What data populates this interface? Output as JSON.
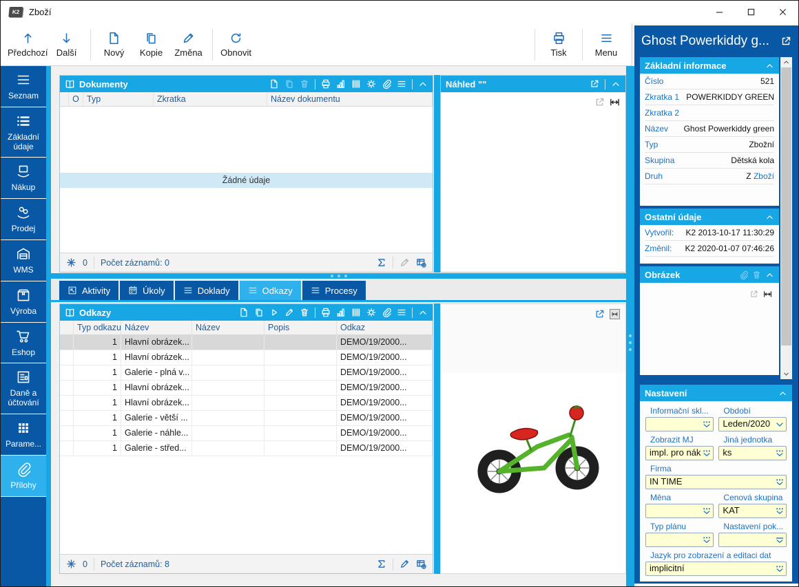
{
  "window": {
    "title": "Zboží",
    "app_logo": "K2",
    "controls": [
      "minimize",
      "maximize",
      "close"
    ]
  },
  "toolbar": {
    "groups": [
      [
        {
          "key": "predchozi",
          "label": "Předchozí",
          "icon": "arrow-up"
        },
        {
          "key": "dalsi",
          "label": "Další",
          "icon": "arrow-down"
        }
      ],
      [
        {
          "key": "novy",
          "label": "Nový",
          "icon": "doc-new"
        },
        {
          "key": "kopie",
          "label": "Kopie",
          "icon": "copy"
        },
        {
          "key": "zmena",
          "label": "Změna",
          "icon": "pencil"
        }
      ],
      [
        {
          "key": "obnovit",
          "label": "Obnovit",
          "icon": "refresh"
        }
      ]
    ],
    "right": [
      {
        "key": "tisk",
        "label": "Tisk",
        "icon": "print"
      },
      {
        "key": "menu",
        "label": "Menu",
        "icon": "menu"
      }
    ]
  },
  "sidebar": {
    "items": [
      {
        "key": "seznam",
        "label": "Seznam",
        "icon": "menu",
        "active": false
      },
      {
        "key": "zakladni-udaje",
        "label": "Základní údaje",
        "icon": "list",
        "active": false
      },
      {
        "key": "nakup",
        "label": "Nákup",
        "icon": "hand-box",
        "active": false
      },
      {
        "key": "prodej",
        "label": "Prodej",
        "icon": "coins-hand",
        "active": false
      },
      {
        "key": "wms",
        "label": "WMS",
        "icon": "warehouse",
        "active": false
      },
      {
        "key": "vyroba",
        "label": "Výroba",
        "icon": "box",
        "active": false
      },
      {
        "key": "eshop",
        "label": "Eshop",
        "icon": "cart",
        "active": false
      },
      {
        "key": "dane",
        "label": "Daně a účtování",
        "icon": "cal-list",
        "active": false
      },
      {
        "key": "parametry",
        "label": "Parame...",
        "icon": "grid",
        "active": false
      },
      {
        "key": "prilohy",
        "label": "Přílohy",
        "icon": "paperclip",
        "active": true
      }
    ]
  },
  "documents_panel": {
    "title": "Dokumenty",
    "actions": [
      {
        "i": "doc-new"
      },
      {
        "i": "copy",
        "d": true
      },
      {
        "i": "trash",
        "d": true
      },
      {
        "sep": true
      },
      {
        "i": "print"
      },
      {
        "i": "chart"
      },
      {
        "i": "columns"
      },
      {
        "i": "gear"
      },
      {
        "i": "paperclip"
      },
      {
        "i": "menu"
      },
      {
        "sep": true
      },
      {
        "i": "chevron-up"
      }
    ],
    "columns": [
      "",
      "O",
      "Typ",
      "Zkratka",
      "Název dokumentu"
    ],
    "empty_text": "Žádné údaje",
    "frozen_count": "0",
    "record_count": "Počet záznamů: 0"
  },
  "preview_panel": {
    "title": "Náhled \"\""
  },
  "tabs": {
    "items": [
      {
        "key": "aktivity",
        "label": "Aktivity",
        "icon": "diag-arrow",
        "active": false
      },
      {
        "key": "ukoly",
        "label": "Úkoly",
        "icon": "calendar",
        "active": false
      },
      {
        "key": "doklady",
        "label": "Doklady",
        "icon": "menu",
        "active": false
      },
      {
        "key": "odkazy",
        "label": "Odkazy",
        "icon": "menu",
        "active": true
      },
      {
        "key": "procesy",
        "label": "Procesy",
        "icon": "menu",
        "active": false
      }
    ]
  },
  "links_panel": {
    "title": "Odkazy",
    "actions": [
      {
        "i": "doc-new"
      },
      {
        "i": "copy"
      },
      {
        "i": "play"
      },
      {
        "i": "pencil"
      },
      {
        "i": "trash"
      },
      {
        "sep": true
      },
      {
        "i": "print"
      },
      {
        "i": "chart"
      },
      {
        "i": "columns"
      },
      {
        "i": "gear"
      },
      {
        "i": "paperclip"
      },
      {
        "i": "menu"
      },
      {
        "sep": true
      },
      {
        "i": "chevron-up"
      }
    ],
    "columns": [
      "",
      "Typ odkazu",
      "Název",
      "Název",
      "Popis",
      "Odkaz"
    ],
    "rows": [
      {
        "typ": "1",
        "nazev": "Hlavní obrázek...",
        "nazev2": "",
        "popis": "",
        "odkaz": "DEMO/19/2000...",
        "selected": true
      },
      {
        "typ": "1",
        "nazev": "Hlavní obrázek...",
        "nazev2": "",
        "popis": "",
        "odkaz": "DEMO/19/2000...",
        "selected": false
      },
      {
        "typ": "1",
        "nazev": "Galerie - plná v...",
        "nazev2": "",
        "popis": "",
        "odkaz": "DEMO/19/2000...",
        "selected": false
      },
      {
        "typ": "1",
        "nazev": "Hlavní obrázek...",
        "nazev2": "",
        "popis": "",
        "odkaz": "DEMO/19/2000...",
        "selected": false
      },
      {
        "typ": "1",
        "nazev": "Hlavní obrázek...",
        "nazev2": "",
        "popis": "",
        "odkaz": "DEMO/19/2000...",
        "selected": false
      },
      {
        "typ": "1",
        "nazev": "Galerie - větší ...",
        "nazev2": "",
        "popis": "",
        "odkaz": "DEMO/19/2000...",
        "selected": false
      },
      {
        "typ": "1",
        "nazev": "Galerie - náhle...",
        "nazev2": "",
        "popis": "",
        "odkaz": "DEMO/19/2000...",
        "selected": false
      },
      {
        "typ": "1",
        "nazev": "Galerie - střed...",
        "nazev2": "",
        "popis": "",
        "odkaz": "DEMO/19/2000...",
        "selected": false
      }
    ],
    "frozen_count": "0",
    "record_count": "Počet záznamů: 8"
  },
  "detail_panel": {
    "title": "Ghost Powerkiddy g...",
    "basic_info": {
      "title": "Základní informace",
      "fields": [
        {
          "key": "cislo",
          "label": "Číslo",
          "value": "521"
        },
        {
          "key": "zkratka1",
          "label": "Zkratka 1",
          "value": "POWERKIDDY GREEN"
        },
        {
          "key": "zkratka2",
          "label": "Zkratka 2",
          "value": ""
        },
        {
          "key": "nazev",
          "label": "Název",
          "value": "Ghost Powerkiddy green"
        },
        {
          "key": "typ",
          "label": "Typ",
          "value": "Zbožní"
        },
        {
          "key": "skupina",
          "label": "Skupina",
          "value": "Dětská kola"
        },
        {
          "key": "druh",
          "label": "Druh",
          "value": "Z",
          "link": "Zboží"
        }
      ]
    },
    "other_info": {
      "title": "Ostatní údaje",
      "fields": [
        {
          "key": "vytvoril",
          "label": "Vytvořil:",
          "value": "K2 2013-10-17 11:30:29"
        },
        {
          "key": "zmenil",
          "label": "Změnil:",
          "value": "K2 2020-01-07 07:46:26"
        }
      ]
    },
    "image_section": {
      "title": "Obrázek"
    },
    "settings": {
      "title": "Nastavení",
      "fields": [
        {
          "key": "informacni_sklad",
          "label": "Informační skl...",
          "value": "",
          "icon": "dd",
          "span": "half"
        },
        {
          "key": "obdobi",
          "label": "Období",
          "value": "Leden/2020",
          "icon": "chev",
          "span": "half"
        },
        {
          "key": "zobrazit_mj",
          "label": "Zobrazit MJ",
          "value": "impl. pro nák",
          "icon": "dd",
          "span": "half"
        },
        {
          "key": "jina_jednotka",
          "label": "Jiná jednotka",
          "value": "ks",
          "icon": "dd",
          "span": "half"
        },
        {
          "key": "firma",
          "label": "Firma",
          "value": "IN TIME",
          "icon": "dd",
          "span": "full"
        },
        {
          "key": "mena",
          "label": "Měna",
          "value": "",
          "icon": "dd",
          "span": "half"
        },
        {
          "key": "cenova_skupina",
          "label": "Cenová skupina",
          "value": "KAT",
          "icon": "dd",
          "span": "half"
        },
        {
          "key": "typ_planu",
          "label": "Typ plánu",
          "value": "",
          "icon": "dd",
          "span": "half"
        },
        {
          "key": "nastaveni_pok",
          "label": "Nastavení pok...",
          "value": "",
          "icon": "ddbar",
          "span": "half"
        },
        {
          "key": "jazyk",
          "label": "Jazyk pro zobrazení a editaci dat",
          "value": "implicitní",
          "icon": "dd",
          "span": "full"
        }
      ]
    }
  },
  "colors": {
    "dark_blue": "#0958a6",
    "cyan": "#17a7e5",
    "active_cyan": "#2eb1ec",
    "toolbar_icon": "#1f6fc0",
    "label_blue": "#1b72c4",
    "header_text": "#1f5c9e",
    "selected_row": "#d8d8d8",
    "empty_band": "#cfe9f7",
    "input_yellow": "#ffffd4",
    "bike_green": "#54b32a",
    "bike_red": "#d6261f"
  }
}
